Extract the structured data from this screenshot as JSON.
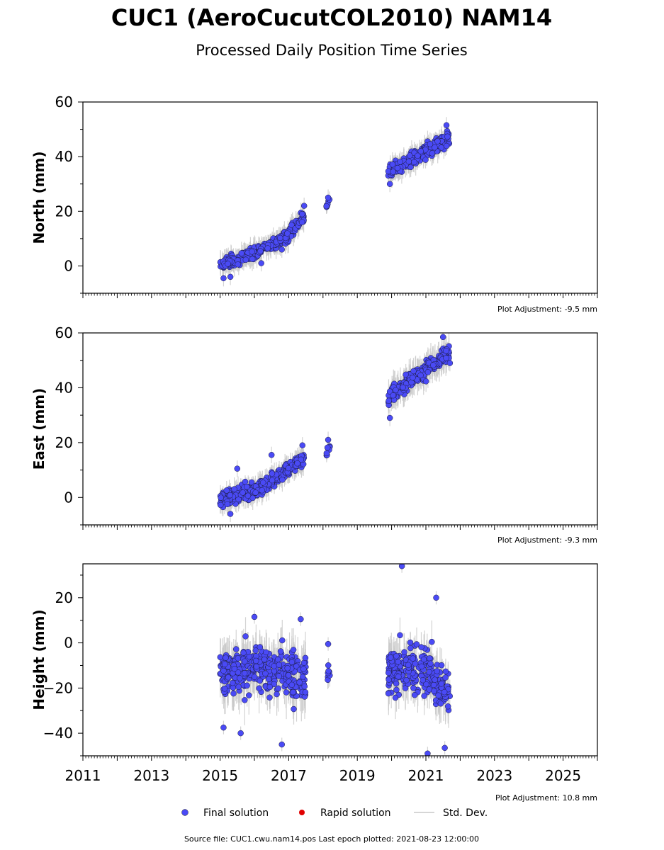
{
  "title": "CUC1 (AeroCucutCOL2010) NAM14",
  "subtitle": "Processed Daily Position Time Series",
  "legend": {
    "final": "Final solution",
    "rapid": "Rapid solution",
    "stddev": "Std. Dev."
  },
  "source_text": "Source file: CUC1.cwu.nam14.pos  Last epoch plotted: 2021-08-23 12:00:00",
  "colors": {
    "final": "#4a4af5",
    "rapid": "#e00000",
    "stddev": "#c8c8c8"
  },
  "chart_data": [
    {
      "type": "scatter",
      "ylabel": "North (mm)",
      "adjustment": "Plot Adjustment: -9.5 mm",
      "xlim": [
        2011,
        2026
      ],
      "ylim": [
        -10,
        60
      ],
      "yticks": [
        0,
        20,
        40,
        60
      ],
      "ytick_labels": [
        "0",
        "20",
        "40",
        "60"
      ],
      "segments": [
        {
          "t0": 2015.0,
          "t1": 2016.1,
          "y0": 0.0,
          "y1": 5.5,
          "spread": 5.0,
          "n": 140,
          "err": 3
        },
        {
          "t0": 2016.1,
          "t1": 2016.9,
          "y0": 5.5,
          "y1": 10.5,
          "spread": 4.5,
          "n": 100,
          "err": 3
        },
        {
          "t0": 2016.9,
          "t1": 2017.45,
          "y0": 10.5,
          "y1": 18.0,
          "spread": 5.0,
          "n": 80,
          "err": 3
        },
        {
          "t0": 2018.1,
          "t1": 2018.2,
          "y0": 22.0,
          "y1": 24.0,
          "spread": 3.0,
          "n": 8,
          "err": 2
        },
        {
          "t0": 2019.9,
          "t1": 2021.7,
          "y0": 34.0,
          "y1": 47.0,
          "spread": 6.0,
          "n": 230,
          "err": 3
        }
      ],
      "points": [
        [
          2015.1,
          -4.5
        ],
        [
          2016.2,
          1.0
        ],
        [
          2016.8,
          6.0
        ],
        [
          2017.45,
          22.0
        ],
        [
          2018.15,
          25.0
        ],
        [
          2019.95,
          30.0
        ],
        [
          2021.6,
          51.5
        ],
        [
          2015.3,
          -4.0
        ]
      ]
    },
    {
      "type": "scatter",
      "ylabel": "East (mm)",
      "adjustment": "Plot Adjustment: -9.3 mm",
      "xlim": [
        2011,
        2026
      ],
      "ylim": [
        -10,
        60
      ],
      "yticks": [
        0,
        20,
        40,
        60
      ],
      "ytick_labels": [
        "0",
        "20",
        "40",
        "60"
      ],
      "segments": [
        {
          "t0": 2015.0,
          "t1": 2016.2,
          "y0": -1.0,
          "y1": 3.5,
          "spread": 6.0,
          "n": 150,
          "err": 3
        },
        {
          "t0": 2016.2,
          "t1": 2016.9,
          "y0": 3.5,
          "y1": 9.5,
          "spread": 6.0,
          "n": 90,
          "err": 3
        },
        {
          "t0": 2016.9,
          "t1": 2017.45,
          "y0": 9.5,
          "y1": 14.5,
          "spread": 5.0,
          "n": 80,
          "err": 3
        },
        {
          "t0": 2018.1,
          "t1": 2018.2,
          "y0": 17.0,
          "y1": 19.0,
          "spread": 4.0,
          "n": 8,
          "err": 2
        },
        {
          "t0": 2019.9,
          "t1": 2021.7,
          "y0": 37.0,
          "y1": 53.0,
          "spread": 6.5,
          "n": 230,
          "err": 4
        }
      ],
      "points": [
        [
          2015.5,
          10.5
        ],
        [
          2016.5,
          15.5
        ],
        [
          2017.4,
          19.0
        ],
        [
          2018.15,
          21.0
        ],
        [
          2019.95,
          29.0
        ],
        [
          2021.5,
          58.5
        ],
        [
          2015.3,
          -6.0
        ],
        [
          2021.7,
          49.0
        ]
      ]
    },
    {
      "type": "scatter",
      "ylabel": "Height (mm)",
      "adjustment": "Plot Adjustment: 10.8 mm",
      "xlim": [
        2011,
        2026
      ],
      "ylim": [
        -50,
        35
      ],
      "yticks": [
        -40,
        -20,
        0,
        20
      ],
      "ytick_labels": [
        "−40",
        "−20",
        "0",
        "20"
      ],
      "xticks": [
        2011,
        2013,
        2015,
        2017,
        2019,
        2021,
        2023,
        2025
      ],
      "xtick_labels": [
        "2011",
        "2013",
        "2015",
        "2017",
        "2019",
        "2021",
        "2023",
        "2025"
      ],
      "segments": [
        {
          "t0": 2015.0,
          "t1": 2016.0,
          "y0": -13.0,
          "y1": -12.0,
          "spread": 22.0,
          "n": 140,
          "err": 8
        },
        {
          "t0": 2016.0,
          "t1": 2016.9,
          "y0": -11.0,
          "y1": -14.0,
          "spread": 22.0,
          "n": 110,
          "err": 8
        },
        {
          "t0": 2016.9,
          "t1": 2017.5,
          "y0": -14.0,
          "y1": -13.0,
          "spread": 22.0,
          "n": 80,
          "err": 8
        },
        {
          "t0": 2018.1,
          "t1": 2018.2,
          "y0": -14.0,
          "y1": -12.0,
          "spread": 12.0,
          "n": 8,
          "err": 4
        },
        {
          "t0": 2019.9,
          "t1": 2021.2,
          "y0": -12.0,
          "y1": -12.0,
          "spread": 24.0,
          "n": 180,
          "err": 7
        },
        {
          "t0": 2021.2,
          "t1": 2021.7,
          "y0": -18.0,
          "y1": -22.0,
          "spread": 22.0,
          "n": 60,
          "err": 8
        }
      ],
      "points": [
        [
          2015.1,
          -37.5
        ],
        [
          2016.0,
          11.5
        ],
        [
          2016.8,
          -45.0
        ],
        [
          2017.35,
          10.5
        ],
        [
          2018.15,
          -0.5
        ],
        [
          2020.3,
          34.0
        ],
        [
          2021.3,
          20.0
        ],
        [
          2021.05,
          -49.0
        ],
        [
          2021.55,
          -46.5
        ],
        [
          2015.6,
          -40.0
        ]
      ]
    }
  ]
}
